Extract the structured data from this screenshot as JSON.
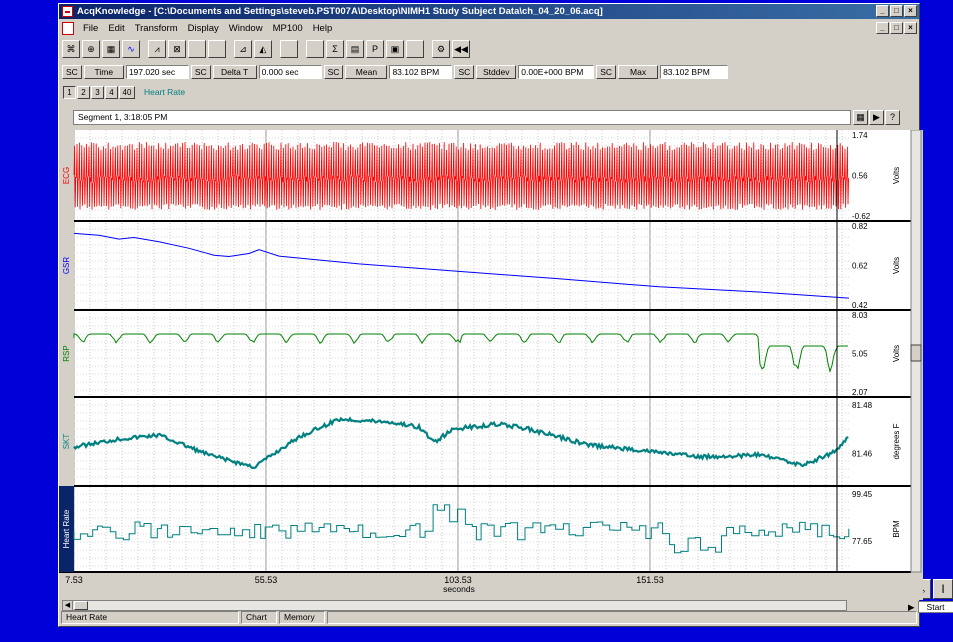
{
  "window": {
    "title": "AcqKnowledge - [C:\\Documents and Settings\\steveb.PST007A\\Desktop\\NIMH1 Study Subject Data\\ch_04_20_06.acq]",
    "min": "_",
    "max": "□",
    "close": "×"
  },
  "menu": [
    "File",
    "Edit",
    "Transform",
    "Display",
    "Window",
    "MP100",
    "Help"
  ],
  "toolbar_icons": [
    "overlap-icon",
    "zoom-icon",
    "grid-icon",
    "waveform-icon",
    "scope-icon",
    "autoscale-icon",
    "blank-icon",
    "blank-icon",
    "chart-icon",
    "chart2-icon",
    "blank-icon",
    "blank-icon",
    "sigma-icon",
    "table-icon",
    "marker-icon",
    "journal-icon",
    "blank-icon",
    "settings-icon",
    "rewind-icon"
  ],
  "measurements": [
    {
      "sc": "SC",
      "name": "Time",
      "value": "197.020 sec"
    },
    {
      "sc": "SC",
      "name": "Delta T",
      "value": "0.000 sec"
    },
    {
      "sc": "SC",
      "name": "Mean",
      "value": "83.102 BPM"
    },
    {
      "sc": "SC",
      "name": "Stddev",
      "value": "0.00E+000 BPM"
    },
    {
      "sc": "SC",
      "name": "Max",
      "value": "83.102 BPM"
    }
  ],
  "channel_buttons": [
    "1",
    "2",
    "3",
    "4",
    "40"
  ],
  "active_channel_label": "Heart Rate",
  "segment_label": "Segment 1, 3:18:05 PM",
  "chart_data": {
    "type": "line",
    "x_ticks": [
      "7.53",
      "55.53",
      "103.53",
      "151.53"
    ],
    "xlabel": "seconds",
    "channels": [
      {
        "name": "ECG",
        "color": "#ff0000",
        "unit": "Volts",
        "ticks": [
          "1.74",
          "0.56",
          "-0.62"
        ]
      },
      {
        "name": "GSR",
        "color": "#0000ff",
        "unit": "Volts",
        "ticks": [
          "0.82",
          "0.62",
          "0.42"
        ]
      },
      {
        "name": "RSP",
        "color": "#008000",
        "unit": "Volts",
        "ticks": [
          "8.03",
          "5.05",
          "2.07"
        ]
      },
      {
        "name": "SKT",
        "color": "#008080",
        "unit": "degrees F",
        "ticks": [
          "81.48",
          "81.46"
        ]
      },
      {
        "name": "Heart Rate",
        "color": "#008080",
        "unit": "BPM",
        "ticks": [
          "99.45",
          "77.65"
        ]
      }
    ]
  },
  "scroll": {
    "start_label": "Start"
  },
  "status": {
    "channel": "Heart Rate",
    "mode": "Chart",
    "memory": "Memory"
  }
}
